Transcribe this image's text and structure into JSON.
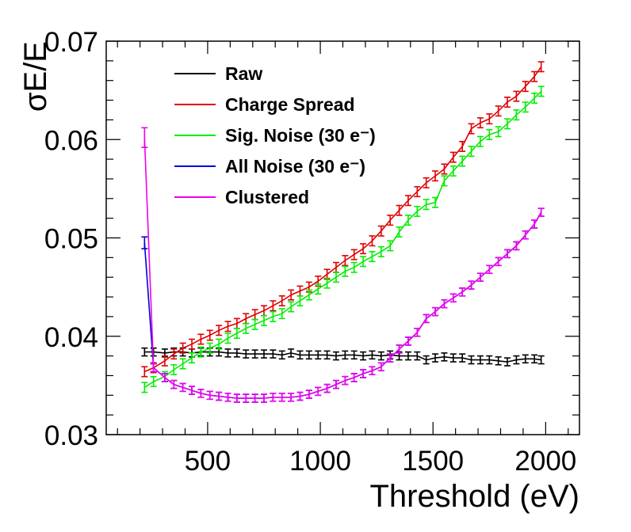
{
  "chart_data": {
    "type": "line",
    "xlabel": "Threshold (eV)",
    "ylabel": "σE/E",
    "xlim": [
      50,
      2150
    ],
    "ylim": [
      0.03,
      0.07
    ],
    "x_ticks": [
      500,
      1000,
      1500,
      2000
    ],
    "x_tick_labels": [
      "500",
      "1000",
      "1500",
      "2000"
    ],
    "y_ticks": [
      0.03,
      0.04,
      0.05,
      0.06,
      0.07
    ],
    "y_tick_labels": [
      "0.03",
      "0.04",
      "0.05",
      "0.06",
      "0.07"
    ],
    "x": [
      220,
      260,
      310,
      350,
      390,
      430,
      470,
      510,
      550,
      590,
      630,
      670,
      710,
      750,
      790,
      830,
      870,
      910,
      950,
      990,
      1030,
      1070,
      1110,
      1150,
      1190,
      1230,
      1270,
      1310,
      1350,
      1390,
      1430,
      1470,
      1510,
      1550,
      1590,
      1630,
      1670,
      1710,
      1750,
      1790,
      1830,
      1870,
      1910,
      1950,
      1980
    ],
    "legend": {
      "position": "top-left"
    },
    "series": [
      {
        "name": "Raw",
        "color": "#000000",
        "values": [
          0.0384,
          0.0384,
          0.0383,
          0.0384,
          0.0384,
          0.0383,
          0.0384,
          0.0384,
          0.0384,
          0.0383,
          0.0383,
          0.0382,
          0.0382,
          0.0382,
          0.0382,
          0.0381,
          0.0383,
          0.0381,
          0.0381,
          0.0381,
          0.0381,
          0.038,
          0.0381,
          0.0381,
          0.038,
          0.0381,
          0.038,
          0.0381,
          0.038,
          0.038,
          0.038,
          0.0376,
          0.0378,
          0.0379,
          0.0378,
          0.0378,
          0.0376,
          0.0376,
          0.0376,
          0.0375,
          0.0374,
          0.0376,
          0.0377,
          0.0377,
          0.0376
        ],
        "errors": [
          0.0004,
          0.0004,
          0.0004,
          0.0004,
          0.0004,
          0.0004,
          0.0004,
          0.0004,
          0.0004,
          0.0004,
          0.0004,
          0.0004,
          0.0004,
          0.0004,
          0.0004,
          0.0004,
          0.0004,
          0.0004,
          0.0004,
          0.0004,
          0.0004,
          0.0004,
          0.0004,
          0.0004,
          0.0004,
          0.0004,
          0.0004,
          0.0004,
          0.0004,
          0.0004,
          0.0004,
          0.0004,
          0.0004,
          0.0004,
          0.0004,
          0.0004,
          0.0004,
          0.0004,
          0.0004,
          0.0004,
          0.0004,
          0.0004,
          0.0004,
          0.0004,
          0.0004
        ]
      },
      {
        "name": "Charge Spread",
        "color": "#e00000",
        "values": [
          0.0364,
          0.0368,
          0.0375,
          0.0382,
          0.0388,
          0.0392,
          0.0397,
          0.0401,
          0.0406,
          0.041,
          0.0413,
          0.0418,
          0.0422,
          0.0426,
          0.0431,
          0.0436,
          0.0442,
          0.0446,
          0.045,
          0.0456,
          0.0463,
          0.047,
          0.0477,
          0.0483,
          0.0489,
          0.0497,
          0.0507,
          0.0518,
          0.0528,
          0.0538,
          0.0547,
          0.0556,
          0.0563,
          0.057,
          0.0582,
          0.0593,
          0.0611,
          0.0617,
          0.0621,
          0.0629,
          0.0638,
          0.0644,
          0.0654,
          0.0664,
          0.0674
        ],
        "errors": [
          0.0005,
          0.0005,
          0.0005,
          0.0005,
          0.0005,
          0.0005,
          0.0005,
          0.0005,
          0.0005,
          0.0005,
          0.0005,
          0.0005,
          0.0005,
          0.0005,
          0.0005,
          0.0005,
          0.0005,
          0.0005,
          0.0005,
          0.0005,
          0.0005,
          0.0005,
          0.0005,
          0.0005,
          0.0005,
          0.0005,
          0.0005,
          0.0005,
          0.0005,
          0.0005,
          0.0005,
          0.0005,
          0.0005,
          0.0005,
          0.0005,
          0.0005,
          0.0005,
          0.0005,
          0.0005,
          0.0005,
          0.0005,
          0.0005,
          0.0005,
          0.0005,
          0.0005
        ]
      },
      {
        "name": "Sig. Noise (30 e⁻)",
        "color": "#00ee00",
        "values": [
          0.0348,
          0.0354,
          0.0359,
          0.0366,
          0.0372,
          0.0378,
          0.0384,
          0.0388,
          0.0392,
          0.0398,
          0.0403,
          0.0408,
          0.0412,
          0.0416,
          0.042,
          0.0423,
          0.043,
          0.0436,
          0.0442,
          0.0448,
          0.0454,
          0.046,
          0.0466,
          0.047,
          0.0476,
          0.0481,
          0.0486,
          0.0492,
          0.0506,
          0.0518,
          0.0527,
          0.0534,
          0.0536,
          0.0558,
          0.0568,
          0.0578,
          0.0588,
          0.0598,
          0.0605,
          0.0608,
          0.0616,
          0.0625,
          0.0633,
          0.0642,
          0.0649
        ],
        "errors": [
          0.0005,
          0.0005,
          0.0005,
          0.0005,
          0.0005,
          0.0005,
          0.0005,
          0.0005,
          0.0005,
          0.0005,
          0.0005,
          0.0005,
          0.0005,
          0.0005,
          0.0005,
          0.0005,
          0.0005,
          0.0005,
          0.0005,
          0.0005,
          0.0005,
          0.0005,
          0.0005,
          0.0005,
          0.0005,
          0.0005,
          0.0005,
          0.0005,
          0.0005,
          0.0005,
          0.0005,
          0.0005,
          0.0005,
          0.0005,
          0.0005,
          0.0005,
          0.0005,
          0.0005,
          0.0005,
          0.0005,
          0.0005,
          0.0005,
          0.0005,
          0.0005,
          0.0005
        ]
      },
      {
        "name": "All Noise (30 e⁻)",
        "color": "#0000dd",
        "values": [
          0.0495,
          0.0368,
          0.0358,
          0.0351,
          0.0348,
          0.0345,
          0.0342,
          0.034,
          0.0339,
          0.0338,
          0.0337,
          0.0337,
          0.0337,
          0.0337,
          0.0338,
          0.0338,
          0.0338,
          0.0339,
          0.0341,
          0.0344,
          0.0347,
          0.0351,
          0.0355,
          0.0358,
          0.0362,
          0.0365,
          0.0369,
          0.0378,
          0.0387,
          0.0395,
          0.0404,
          0.0418,
          0.0425,
          0.0433,
          0.0439,
          0.0445,
          0.0452,
          0.046,
          0.0468,
          0.0476,
          0.0484,
          0.0492,
          0.0503,
          0.0514,
          0.0526
        ],
        "errors": [
          0.0006,
          0.0004,
          0.0004,
          0.0004,
          0.0004,
          0.0004,
          0.0004,
          0.0004,
          0.0004,
          0.0004,
          0.0004,
          0.0004,
          0.0004,
          0.0004,
          0.0004,
          0.0004,
          0.0004,
          0.0004,
          0.0004,
          0.0004,
          0.0004,
          0.0004,
          0.0004,
          0.0004,
          0.0004,
          0.0004,
          0.0004,
          0.0004,
          0.0004,
          0.0004,
          0.0004,
          0.0004,
          0.0004,
          0.0004,
          0.0004,
          0.0004,
          0.0004,
          0.0004,
          0.0004,
          0.0004,
          0.0004,
          0.0004,
          0.0004,
          0.0004,
          0.0004
        ]
      },
      {
        "name": "Clustered",
        "color": "#ee00ee",
        "values": [
          0.0602,
          0.0368,
          0.0358,
          0.0351,
          0.0348,
          0.0345,
          0.0342,
          0.034,
          0.0339,
          0.0338,
          0.0337,
          0.0337,
          0.0337,
          0.0337,
          0.0338,
          0.0338,
          0.0338,
          0.0339,
          0.0341,
          0.0344,
          0.0347,
          0.0351,
          0.0355,
          0.0358,
          0.0362,
          0.0365,
          0.0369,
          0.0378,
          0.0387,
          0.0395,
          0.0404,
          0.0418,
          0.0425,
          0.0433,
          0.0439,
          0.0445,
          0.0452,
          0.046,
          0.0468,
          0.0476,
          0.0484,
          0.0492,
          0.0503,
          0.0514,
          0.0526
        ],
        "errors": [
          0.001,
          0.0004,
          0.0004,
          0.0004,
          0.0004,
          0.0004,
          0.0004,
          0.0004,
          0.0004,
          0.0004,
          0.0004,
          0.0004,
          0.0004,
          0.0004,
          0.0004,
          0.0004,
          0.0004,
          0.0004,
          0.0004,
          0.0004,
          0.0004,
          0.0004,
          0.0004,
          0.0004,
          0.0004,
          0.0004,
          0.0004,
          0.0004,
          0.0004,
          0.0004,
          0.0004,
          0.0004,
          0.0004,
          0.0004,
          0.0004,
          0.0004,
          0.0004,
          0.0004,
          0.0004,
          0.0004,
          0.0004,
          0.0004,
          0.0004,
          0.0004,
          0.0004
        ]
      }
    ]
  }
}
